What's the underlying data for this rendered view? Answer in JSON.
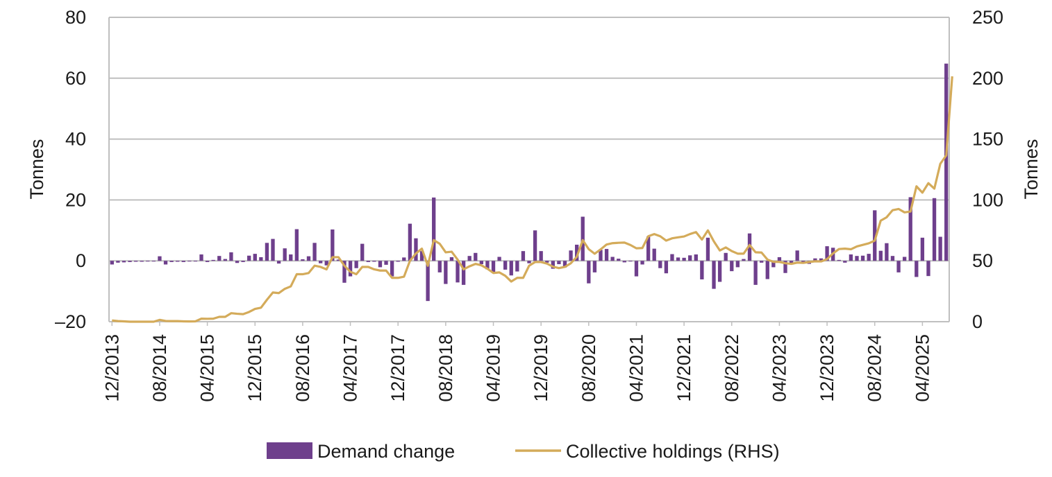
{
  "chart_data": {
    "type": "bar+line",
    "title": "",
    "ylabel_left": "Tonnes",
    "ylabel_right": "Tonnes",
    "ylim_left": [
      -20,
      80
    ],
    "ylim_right": [
      0,
      250
    ],
    "yticks_left": [
      "–20",
      "0",
      "20",
      "40",
      "60",
      "80"
    ],
    "yticks_right": [
      "0",
      "50",
      "100",
      "150",
      "200",
      "250"
    ],
    "xtick_labels": [
      "12/2013",
      "08/2014",
      "04/2015",
      "12/2015",
      "08/2016",
      "04/2017",
      "12/2017",
      "08/2018",
      "04/2019",
      "12/2019",
      "08/2020",
      "04/2021",
      "12/2021",
      "08/2022",
      "04/2023",
      "12/2023",
      "08/2024",
      "04/2025"
    ],
    "grid": "horizontal",
    "colors": {
      "bars": "#6E3F8C",
      "line": "#D4AB5A",
      "grid": "#bfbfbf",
      "frame": "#bfbfbf"
    },
    "legend": {
      "position": "bottom",
      "bar_label": "Demand change",
      "line_label": "Collective holdings (RHS)"
    },
    "series": [
      {
        "name": "Demand change",
        "kind": "bar",
        "axis": "left",
        "values": [
          -1.2,
          -0.6,
          -0.5,
          -0.4,
          -0.3,
          -0.3,
          -0.2,
          -0.2,
          1.5,
          -1.2,
          -0.4,
          -0.3,
          -0.4,
          -0.2,
          -0.2,
          2.1,
          -0.4,
          0.3,
          1.6,
          0.6,
          2.8,
          -0.7,
          -0.4,
          1.7,
          2.3,
          1.2,
          5.9,
          7.2,
          -0.9,
          4.1,
          2.1,
          10.4,
          0.5,
          1.5,
          5.9,
          -0.8,
          -1.5,
          10.3,
          0.4,
          -7.2,
          -5.1,
          -2.4,
          5.6,
          -0.4,
          -0.3,
          -2.1,
          -1.3,
          -5.1,
          -0.3,
          1.1,
          12.2,
          7.4,
          3.2,
          -13.2,
          20.8,
          -3.8,
          -7.6,
          1.2,
          -7.1,
          -7.9,
          1.6,
          2.6,
          -1.1,
          -2.8,
          -3.6,
          1.3,
          -2.9,
          -4.8,
          -3.5,
          3.2,
          -0.8,
          10,
          3.2,
          -0.6,
          -2.6,
          -1.1,
          -2.2,
          3.4,
          5.3,
          14.5,
          -7.4,
          -3.8,
          3.6,
          3.9,
          1.3,
          0.7,
          -0.5,
          -0.2,
          -5.1,
          -1.2,
          8,
          4,
          -2.4,
          -4.1,
          2.2,
          1.1,
          1,
          1.8,
          2.1,
          -6.1,
          7.6,
          -9.2,
          -6.9,
          2.6,
          -3.4,
          -2.1,
          0.6,
          9,
          -7.9,
          -0.6,
          -6,
          -2.1,
          1.2,
          -4,
          -0.7,
          3.4,
          -0.4,
          -1,
          0.8,
          0.8,
          4.8,
          4.3,
          0.3,
          -0.6,
          2.1,
          1.6,
          1.7,
          2.3,
          16.6,
          3.3,
          5.8,
          1.6,
          -3.8,
          1.3,
          20.9,
          -5.3,
          7.6,
          -5,
          20.6,
          7.9,
          64.8
        ]
      },
      {
        "name": "Collective holdings (RHS)",
        "kind": "line",
        "axis": "right",
        "values": [
          1,
          0.5,
          0.3,
          0,
          0,
          0,
          0,
          0,
          1.5,
          0.6,
          0.5,
          0.5,
          0.3,
          0.2,
          0.3,
          2.5,
          2.4,
          2.5,
          4,
          4,
          7,
          6.5,
          6.2,
          8,
          10.5,
          11.5,
          18,
          24,
          23.5,
          27,
          29,
          39,
          39,
          40,
          46,
          45,
          43,
          53,
          53,
          46,
          41,
          39,
          45,
          45,
          43,
          42,
          42,
          36,
          36,
          37,
          50,
          56,
          60,
          46,
          67,
          64,
          57,
          57.5,
          51,
          43,
          45.5,
          47.5,
          46.3,
          43.5,
          40,
          40.5,
          37.7,
          33,
          36,
          36,
          46,
          49,
          49,
          47.7,
          45.2,
          44,
          45,
          48,
          53.3,
          67,
          59.6,
          55.8,
          59.4,
          63.4,
          64.5,
          64.8,
          65,
          63,
          60.3,
          60.5,
          70.2,
          72,
          70.2,
          66.6,
          68.5,
          69.3,
          70,
          72,
          73.6,
          67.5,
          75,
          66,
          58.5,
          61,
          58,
          55.9,
          55.9,
          63,
          57,
          56.8,
          51,
          49.2,
          49.1,
          48,
          47.5,
          48.5,
          48.3,
          49,
          49.6,
          49.5,
          51.4,
          56.1,
          59.7,
          60,
          59.5,
          61.8,
          63.1,
          64.4,
          66.6,
          83,
          85.8,
          91.6,
          92.6,
          89.8,
          90.5,
          111.2,
          106,
          113.8,
          109.3,
          129.7,
          136.6,
          201.5
        ]
      }
    ]
  }
}
